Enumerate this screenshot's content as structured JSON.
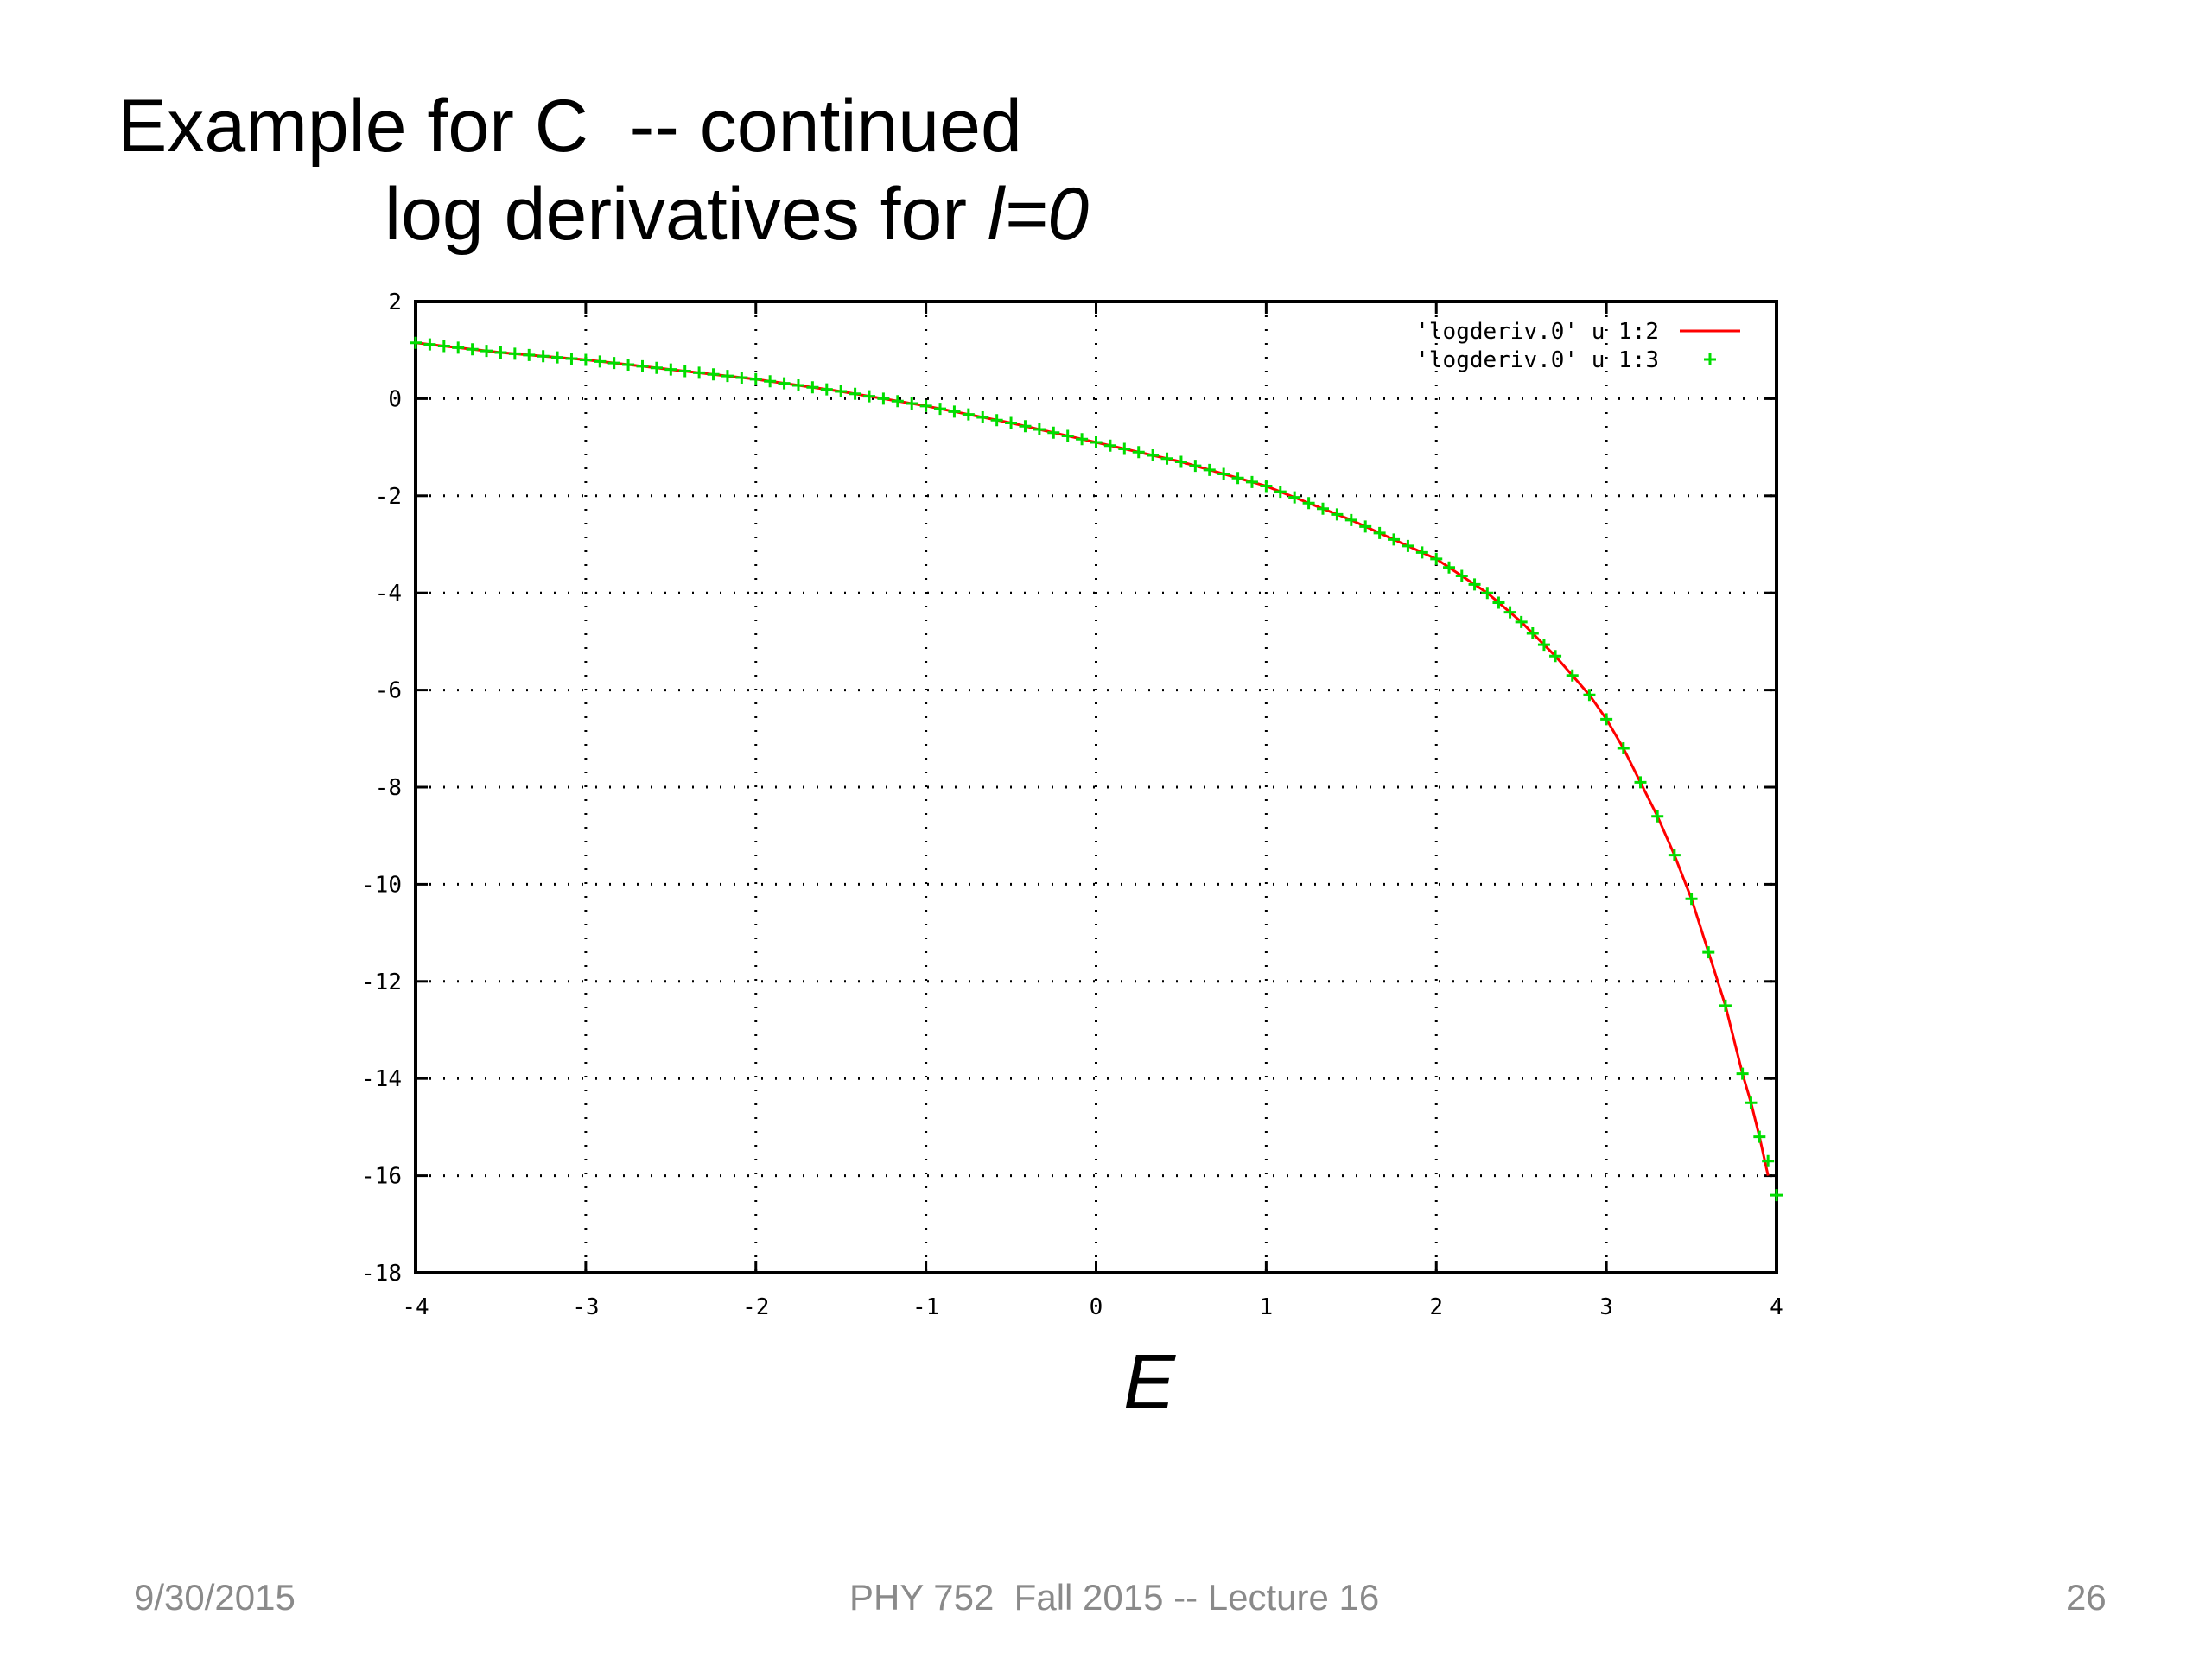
{
  "slide": {
    "title_line1": "Example for C  -- continued",
    "title_line2_prefix": "log derivatives for ",
    "title_line2_italic": "l=0"
  },
  "footer": {
    "date": "9/30/2015",
    "course": "PHY 752  Fall 2015 -- Lecture 16",
    "page": "26"
  },
  "chart_data": {
    "type": "line",
    "xlabel": "E",
    "ylabel": "",
    "xlim": [
      -4,
      4
    ],
    "ylim": [
      -18,
      2
    ],
    "xticks": [
      -4,
      -3,
      -2,
      -1,
      0,
      1,
      2,
      3,
      4
    ],
    "yticks": [
      2,
      0,
      -2,
      -4,
      -6,
      -8,
      -10,
      -12,
      -14,
      -16,
      -18
    ],
    "grid": true,
    "legend_position": "top-right",
    "colors": {
      "line": "#ff0000",
      "points": "#00dd00",
      "axis": "#000000",
      "grid": "#000000"
    },
    "series": [
      {
        "name": "'logderiv.0' u 1:2",
        "style": "line",
        "x": [
          -4.0,
          -3.5,
          -3.0,
          -2.5,
          -2.0,
          -1.5,
          -1.0,
          -0.5,
          0.0,
          0.5,
          1.0,
          1.5,
          2.0,
          2.3,
          2.5,
          2.7,
          2.9,
          3.0,
          3.1,
          3.2,
          3.3,
          3.4,
          3.5,
          3.6,
          3.7,
          3.8,
          3.85,
          3.9,
          3.95
        ],
        "y": [
          1.15,
          0.95,
          0.8,
          0.6,
          0.4,
          0.15,
          -0.15,
          -0.5,
          -0.9,
          -1.3,
          -1.8,
          -2.5,
          -3.3,
          -4.0,
          -4.6,
          -5.3,
          -6.1,
          -6.6,
          -7.2,
          -7.9,
          -8.6,
          -9.4,
          -10.3,
          -11.4,
          -12.5,
          -13.9,
          -14.5,
          -15.2,
          -16.0
        ]
      },
      {
        "name": "'logderiv.0' u 1:3",
        "style": "points",
        "x": [
          -4.0,
          -3.5,
          -3.0,
          -2.5,
          -2.0,
          -1.5,
          -1.0,
          -0.5,
          0.0,
          0.5,
          1.0,
          1.5,
          2.0,
          2.3,
          2.5,
          2.7,
          2.9,
          3.0,
          3.1,
          3.2,
          3.3,
          3.4,
          3.5,
          3.6,
          3.7,
          3.8,
          3.85,
          3.9,
          3.95,
          4.0
        ],
        "y": [
          1.15,
          0.95,
          0.8,
          0.6,
          0.4,
          0.15,
          -0.15,
          -0.5,
          -0.9,
          -1.3,
          -1.8,
          -2.5,
          -3.3,
          -4.0,
          -4.6,
          -5.3,
          -6.1,
          -6.6,
          -7.2,
          -7.9,
          -8.6,
          -9.4,
          -10.3,
          -11.4,
          -12.5,
          -13.9,
          -14.5,
          -15.2,
          -15.7,
          -16.4
        ]
      }
    ]
  }
}
